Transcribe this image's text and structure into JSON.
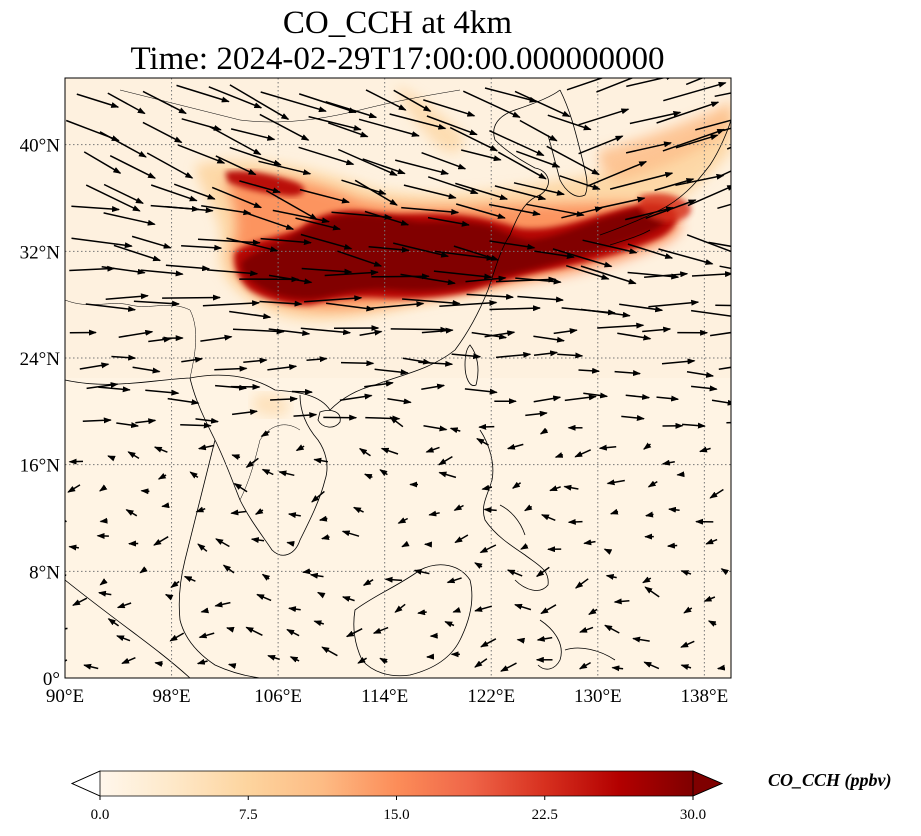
{
  "title": {
    "line1": "CO_CCH at 4km",
    "line2": "Time: 2024-02-29T17:00:00.000000000"
  },
  "map": {
    "lon_range": [
      90,
      140
    ],
    "lat_range": [
      0,
      45
    ],
    "lon_ticks": [
      "90°E",
      "98°E",
      "106°E",
      "114°E",
      "122°E",
      "130°E",
      "138°E"
    ],
    "lon_tick_values": [
      90,
      98,
      106,
      114,
      122,
      130,
      138
    ],
    "lat_ticks": [
      "0°",
      "8°N",
      "16°N",
      "24°N",
      "32°N",
      "40°N"
    ],
    "lat_tick_values": [
      0,
      8,
      16,
      24,
      32,
      40
    ],
    "gridlines": true,
    "coastlines": true,
    "wind_vectors": true,
    "colormap": "OrRd"
  },
  "colorbar": {
    "label": "CO_CCH (ppbv)",
    "ticks": [
      "0.0",
      "7.5",
      "15.0",
      "22.5",
      "30.0"
    ],
    "tick_values": [
      0,
      7.5,
      15,
      22.5,
      30
    ],
    "range": [
      0,
      30
    ],
    "extend": "both",
    "colors": [
      "#fff7ec",
      "#fee8c8",
      "#fdd49e",
      "#fdbb84",
      "#fc8d59",
      "#ef6548",
      "#d7301f",
      "#b30000",
      "#7f0000"
    ]
  },
  "plume": {
    "description_band": "high CO band from ~102°E 30°N extending east-northeast to ~136°E 35°N",
    "max_value": 30
  }
}
